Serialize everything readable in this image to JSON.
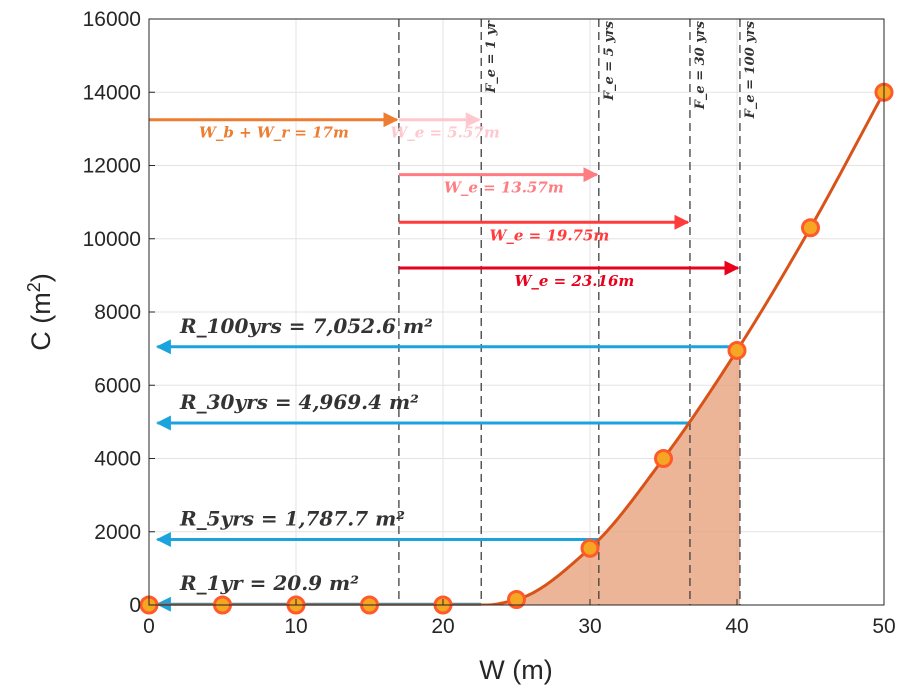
{
  "chart_data": {
    "type": "line",
    "xlabel": "W (m)",
    "ylabel": "C (m²)",
    "xlim": [
      0,
      50
    ],
    "ylim": [
      0,
      16000
    ],
    "xticks": [
      "0",
      "10",
      "20",
      "30",
      "40",
      "50"
    ],
    "yticks": [
      "0",
      "2000",
      "4000",
      "6000",
      "8000",
      "10000",
      "12000",
      "14000",
      "16000"
    ],
    "grid": true,
    "x": [
      0,
      5,
      10,
      15,
      20,
      25,
      30,
      35,
      40,
      45,
      50
    ],
    "y": [
      0,
      0,
      0,
      0,
      0,
      150,
      1550,
      4000,
      6950,
      10300,
      14000
    ],
    "curve_onset_x": 22.9,
    "line_color": "#d95319",
    "marker_color": "#f5a623",
    "marker_edge_color": "#ff5a2a",
    "fill_color": "#e9a37d",
    "fill_range": [
      22.6,
      40.2
    ],
    "vertical_lines": [
      {
        "x": 17.0,
        "label": ""
      },
      {
        "x": 22.6,
        "label": "F_e = 1 yr"
      },
      {
        "x": 30.6,
        "label": "F_e = 5 yrs"
      },
      {
        "x": 36.8,
        "label": "F_e = 30 yrs"
      },
      {
        "x": 40.2,
        "label": "F_e = 100 yrs"
      }
    ],
    "horizontal_arrows": [
      {
        "x_start": 0,
        "x_end": 17.0,
        "y": 13250,
        "color": "#ed7d31",
        "label": "W_b + W_r = 17m"
      },
      {
        "x_start": 17.0,
        "x_end": 22.6,
        "y": 13250,
        "color": "#ffc7ce",
        "label": "W_e = 5.57m"
      },
      {
        "x_start": 17.0,
        "x_end": 30.6,
        "y": 11750,
        "color": "#ff7c80",
        "label": "W_e = 13.57m"
      },
      {
        "x_start": 17.0,
        "x_end": 36.8,
        "y": 10450,
        "color": "#ff3b3b",
        "label": "W_e = 19.75m"
      },
      {
        "x_start": 17.0,
        "x_end": 40.2,
        "y": 9200,
        "color": "#e8001c",
        "label": "W_e = 23.16m"
      }
    ],
    "result_arrows": [
      {
        "x_start": 40.2,
        "x_end": 0.3,
        "y": 7050,
        "color": "#1aa3dc",
        "label": "R_100yrs = 7,052.6 m²"
      },
      {
        "x_start": 36.8,
        "x_end": 0.3,
        "y": 4969,
        "color": "#1aa3dc",
        "label": "R_30yrs = 4,969.4 m²"
      },
      {
        "x_start": 30.6,
        "x_end": 0.3,
        "y": 1788,
        "color": "#1aa3dc",
        "label": "R_5yrs = 1,787.7 m²"
      },
      {
        "x_start": 22.6,
        "x_end": 0.3,
        "y": 21,
        "color": "#1aa3dc",
        "label": "R_1yr = 20.9 m²"
      }
    ]
  }
}
